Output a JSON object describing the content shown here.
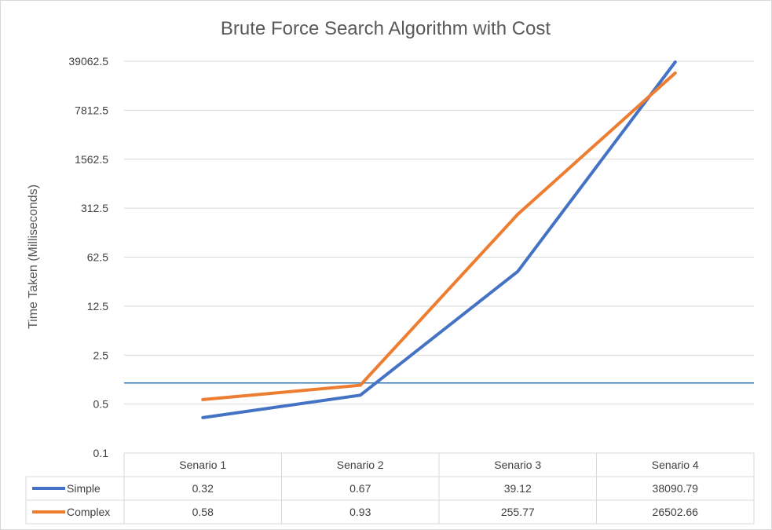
{
  "chart_data": {
    "type": "line",
    "title": "Brute Force Search Algorithm with Cost",
    "ylabel": "Time Taken (Milliseconds)",
    "xlabel": "",
    "y_scale": "log",
    "log_base": 5,
    "ylim": [
      0.1,
      39062.5
    ],
    "y_ticks": [
      "0.1",
      "0.5",
      "2.5",
      "12.5",
      "62.5",
      "312.5",
      "1562.5",
      "7812.5",
      "39062.5"
    ],
    "y_tick_values": [
      0.1,
      0.5,
      2.5,
      12.5,
      62.5,
      312.5,
      1562.5,
      7812.5,
      39062.5
    ],
    "categories": [
      "Senario 1",
      "Senario 2",
      "Senario 3",
      "Senario 4"
    ],
    "series": [
      {
        "name": "Simple",
        "color": "#4472C4",
        "values": [
          0.32,
          0.67,
          39.12,
          38090.79
        ],
        "labels": [
          "0.32",
          "0.67",
          "39.12",
          "38090.79"
        ]
      },
      {
        "name": "Complex",
        "color": "#ED7D31",
        "values": [
          0.58,
          0.93,
          255.77,
          26502.66
        ],
        "labels": [
          "0.58",
          "0.93",
          "255.77",
          "26502.66"
        ]
      }
    ],
    "reference_line": {
      "value": 1,
      "color": "#2E75B6"
    },
    "grid": true,
    "legend": "data-table"
  }
}
